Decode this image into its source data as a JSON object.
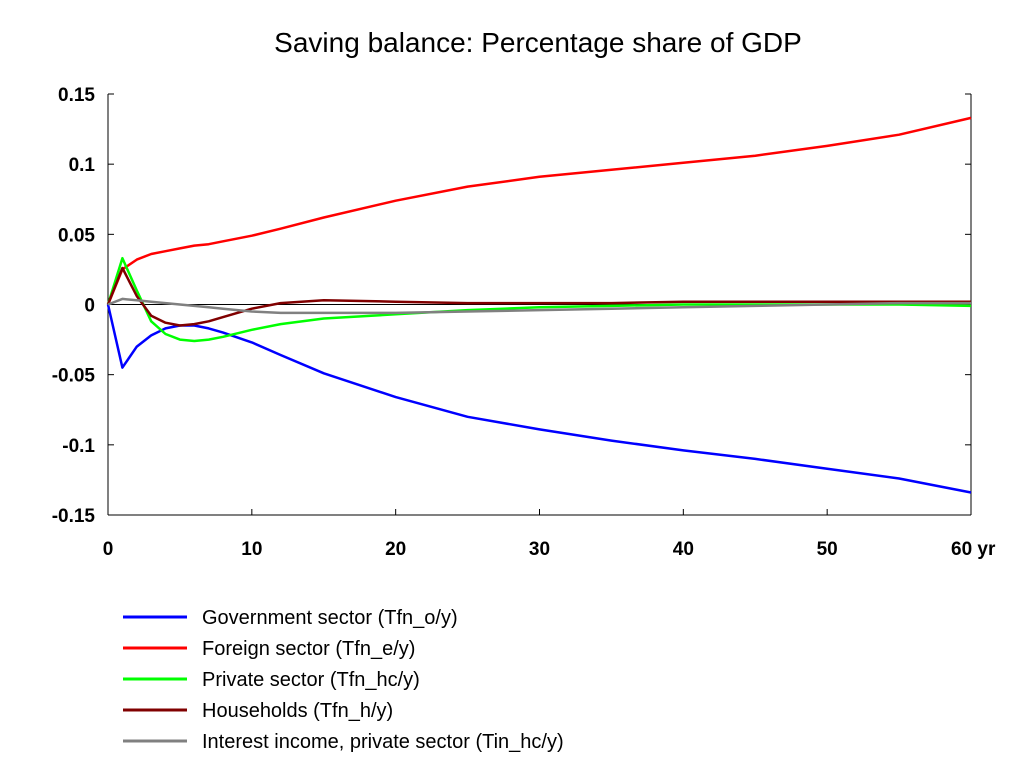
{
  "chart_data": {
    "type": "line",
    "title": "Saving balance: Percentage share of GDP",
    "xlabel": "",
    "ylabel": "",
    "xlim": [
      0,
      60
    ],
    "ylim": [
      -0.15,
      0.15
    ],
    "x_ticks": [
      0,
      10,
      20,
      30,
      40,
      50,
      60
    ],
    "x_tick_labels": [
      "0",
      "10",
      "20",
      "30",
      "40",
      "50",
      "60 yr"
    ],
    "y_ticks": [
      0.15,
      0.1,
      0.05,
      0,
      -0.05,
      -0.1,
      -0.15
    ],
    "y_tick_labels": [
      "0.15",
      "0.1",
      "0.05",
      "0",
      "-0.05",
      "-0.1",
      "-0.15"
    ],
    "grid": false,
    "zero_line": true,
    "legend_position": "bottom",
    "x": [
      0,
      1,
      2,
      3,
      4,
      5,
      6,
      7,
      8,
      10,
      12,
      15,
      20,
      25,
      30,
      35,
      40,
      45,
      50,
      55,
      60
    ],
    "series": [
      {
        "name": "Government sector (Tfn_o/y)",
        "color": "#0000ff",
        "values": [
          0,
          -0.045,
          -0.03,
          -0.022,
          -0.017,
          -0.015,
          -0.015,
          -0.017,
          -0.02,
          -0.027,
          -0.036,
          -0.049,
          -0.066,
          -0.08,
          -0.089,
          -0.097,
          -0.104,
          -0.11,
          -0.117,
          -0.124,
          -0.134
        ]
      },
      {
        "name": "Foreign sector (Tfn_e/y)",
        "color": "#ff0000",
        "values": [
          0,
          0.025,
          0.032,
          0.036,
          0.038,
          0.04,
          0.042,
          0.043,
          0.045,
          0.049,
          0.054,
          0.062,
          0.074,
          0.084,
          0.091,
          0.096,
          0.101,
          0.106,
          0.113,
          0.121,
          0.133
        ]
      },
      {
        "name": "Private sector (Tfn_hc/y)",
        "color": "#00ff00",
        "values": [
          0,
          0.033,
          0.01,
          -0.012,
          -0.021,
          -0.025,
          -0.026,
          -0.025,
          -0.023,
          -0.018,
          -0.014,
          -0.01,
          -0.007,
          -0.004,
          -0.002,
          -0.001,
          0,
          0,
          0,
          0,
          -0.001
        ]
      },
      {
        "name": "Households (Tfn_h/y)",
        "color": "#800000",
        "values": [
          0,
          0.026,
          0.006,
          -0.008,
          -0.013,
          -0.015,
          -0.014,
          -0.012,
          -0.009,
          -0.003,
          0.001,
          0.003,
          0.002,
          0.001,
          0.001,
          0.001,
          0.002,
          0.002,
          0.002,
          0.002,
          0.002
        ]
      },
      {
        "name": "Interest income, private sector (Tin_hc/y)",
        "color": "#808080",
        "values": [
          0,
          0.004,
          0.003,
          0.002,
          0.001,
          0,
          -0.001,
          -0.002,
          -0.003,
          -0.005,
          -0.006,
          -0.006,
          -0.006,
          -0.005,
          -0.004,
          -0.003,
          -0.002,
          -0.001,
          0,
          0.001,
          0.001
        ]
      }
    ]
  }
}
